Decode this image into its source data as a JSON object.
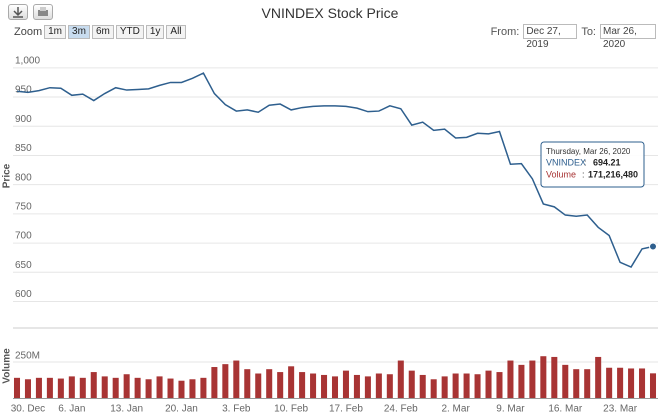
{
  "chart_data": {
    "type": "stock",
    "title": "VNINDEX Stock Price",
    "range_selector": {
      "zoom_label": "Zoom",
      "buttons": [
        "1m",
        "3m",
        "6m",
        "YTD",
        "1y",
        "All"
      ],
      "selected": "3m",
      "from_label": "From:",
      "from": "Dec 27, 2019",
      "to_label": "To:",
      "to": "Mar 26, 2020"
    },
    "y_label": "Price",
    "y2_label": "Volume",
    "x": [
      "2019-12-27",
      "2019-12-30",
      "2019-12-31",
      "2020-01-02",
      "2020-01-03",
      "2020-01-06",
      "2020-01-07",
      "2020-01-08",
      "2020-01-09",
      "2020-01-10",
      "2020-01-13",
      "2020-01-14",
      "2020-01-15",
      "2020-01-16",
      "2020-01-17",
      "2020-01-20",
      "2020-01-21",
      "2020-01-22",
      "2020-01-30",
      "2020-01-31",
      "2020-02-03",
      "2020-02-04",
      "2020-02-05",
      "2020-02-06",
      "2020-02-07",
      "2020-02-10",
      "2020-02-11",
      "2020-02-12",
      "2020-02-13",
      "2020-02-14",
      "2020-02-17",
      "2020-02-18",
      "2020-02-19",
      "2020-02-20",
      "2020-02-21",
      "2020-02-24",
      "2020-02-25",
      "2020-02-26",
      "2020-02-27",
      "2020-02-28",
      "2020-03-02",
      "2020-03-03",
      "2020-03-04",
      "2020-03-05",
      "2020-03-06",
      "2020-03-09",
      "2020-03-10",
      "2020-03-11",
      "2020-03-12",
      "2020-03-13",
      "2020-03-16",
      "2020-03-17",
      "2020-03-18",
      "2020-03-19",
      "2020-03-20",
      "2020-03-23",
      "2020-03-24",
      "2020-03-25",
      "2020-03-26"
    ],
    "series": [
      {
        "name": "VNINDEX",
        "color": "#2e5f8e",
        "values": [
          960,
          958,
          961,
          966,
          965,
          953,
          955,
          944,
          956,
          966,
          962,
          963,
          964,
          970,
          975,
          975,
          982,
          991,
          956,
          937,
          926,
          928,
          924,
          936,
          938,
          928,
          932,
          934,
          935,
          935,
          934,
          931,
          925,
          926,
          935,
          930,
          902,
          907,
          893,
          895,
          880,
          881,
          888,
          887,
          891,
          835,
          836,
          810,
          767,
          762,
          748,
          746,
          748,
          727,
          713,
          667,
          659,
          690,
          694.21
        ]
      },
      {
        "name": "Volume",
        "color": "#a83434",
        "axis": "y2",
        "values": [
          140000000,
          130000000,
          140000000,
          140000000,
          135000000,
          150000000,
          140000000,
          180000000,
          150000000,
          140000000,
          165000000,
          140000000,
          130000000,
          150000000,
          135000000,
          120000000,
          130000000,
          140000000,
          215000000,
          235000000,
          260000000,
          200000000,
          170000000,
          200000000,
          180000000,
          220000000,
          180000000,
          170000000,
          160000000,
          150000000,
          190000000,
          160000000,
          150000000,
          170000000,
          165000000,
          260000000,
          190000000,
          160000000,
          130000000,
          150000000,
          170000000,
          170000000,
          165000000,
          190000000,
          180000000,
          260000000,
          230000000,
          260000000,
          290000000,
          285000000,
          230000000,
          200000000,
          200000000,
          285000000,
          210000000,
          210000000,
          205000000,
          205000000,
          171216480
        ]
      }
    ],
    "ylim": [
      582,
      1022
    ],
    "yticks": [
      600,
      650,
      700,
      750,
      800,
      850,
      900,
      950,
      {
        "value": 1000,
        "label": "1,000"
      }
    ],
    "y2lim": [
      0,
      472000000
    ],
    "y2ticks": [
      {
        "value": 250000000,
        "label": "250M"
      }
    ],
    "xticks": [
      {
        "value": "2019-12-30",
        "label": "30. Dec"
      },
      {
        "value": "2020-01-06",
        "label": "6. Jan"
      },
      {
        "value": "2020-01-13",
        "label": "13. Jan"
      },
      {
        "value": "2020-01-20",
        "label": "20. Jan"
      },
      {
        "value": "2020-02-03",
        "label": "3. Feb"
      },
      {
        "value": "2020-02-10",
        "label": "10. Feb"
      },
      {
        "value": "2020-02-17",
        "label": "17. Feb"
      },
      {
        "value": "2020-02-24",
        "label": "24. Feb"
      },
      {
        "value": "2020-03-02",
        "label": "2. Mar"
      },
      {
        "value": "2020-03-09",
        "label": "9. Mar"
      },
      {
        "value": "2020-03-16",
        "label": "16. Mar"
      },
      {
        "value": "2020-03-23",
        "label": "23. Mar"
      }
    ],
    "grid": true,
    "tooltip": {
      "header": "Thursday, Mar 26, 2020",
      "separator": ":",
      "labels": [
        "694.21",
        "171,216,480"
      ]
    }
  }
}
